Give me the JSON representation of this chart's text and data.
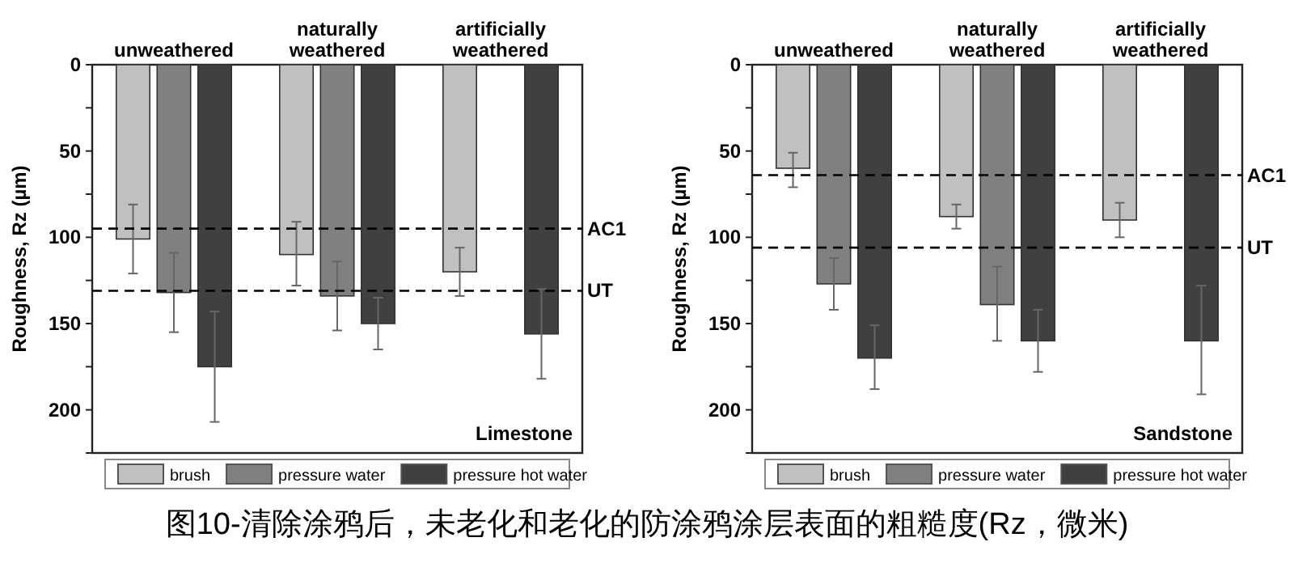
{
  "chart_data": [
    {
      "type": "bar",
      "ylabel": "Roughness, Rz (µm)",
      "categories": [
        "unweathered",
        "naturally weathered",
        "artificially weathered"
      ],
      "series": [
        {
          "name": "brush",
          "color": "#c0c0c0",
          "values": [
            101,
            110,
            120
          ],
          "errors": [
            [
              81,
              121
            ],
            [
              91,
              128
            ],
            [
              106,
              134
            ]
          ]
        },
        {
          "name": "pressure water",
          "color": "#808080",
          "values": [
            132,
            134,
            null
          ],
          "errors": [
            [
              109,
              155
            ],
            [
              114,
              154
            ],
            null
          ]
        },
        {
          "name": "pressure hot water",
          "color": "#404040",
          "values": [
            175,
            150,
            156
          ],
          "errors": [
            [
              143,
              207
            ],
            [
              135,
              165
            ],
            [
              130,
              182
            ]
          ]
        }
      ],
      "ylim": [
        225,
        0
      ],
      "yticks": [
        0,
        {
          "value": 25,
          "label": null
        },
        50,
        {
          "value": 75,
          "label": null
        },
        100,
        {
          "value": 125,
          "label": null
        },
        150,
        {
          "value": 175,
          "label": null
        },
        200,
        {
          "value": 225,
          "label": null
        }
      ],
      "ref_lines": [
        {
          "axis": "y",
          "value": 95,
          "label": "AC1",
          "line_style": "dashed"
        },
        {
          "axis": "y",
          "value": 131,
          "label": "UT",
          "line_style": "dashed"
        }
      ],
      "legend": "bottom",
      "grid": false,
      "annotations": [
        "Limestone",
        "图10-清除涂鸦后，未老化和老化的防涂鸦涂层表面的粗糙度(Rz，微米)"
      ]
    },
    {
      "type": "bar",
      "ylabel": "Roughness, Rz (µm)",
      "categories": [
        "unweathered",
        "naturally weathered",
        "artificially weathered"
      ],
      "series": [
        {
          "name": "brush",
          "color": "#c0c0c0",
          "values": [
            60,
            88,
            90
          ],
          "errors": [
            [
              51,
              71
            ],
            [
              81,
              95
            ],
            [
              80,
              100
            ]
          ]
        },
        {
          "name": "pressure water",
          "color": "#808080",
          "values": [
            127,
            139,
            null
          ],
          "errors": [
            [
              112,
              142
            ],
            [
              117,
              160
            ],
            null
          ]
        },
        {
          "name": "pressure hot water",
          "color": "#404040",
          "values": [
            170,
            160,
            160
          ],
          "errors": [
            [
              151,
              188
            ],
            [
              142,
              178
            ],
            [
              128,
              191
            ]
          ]
        }
      ],
      "ylim": [
        225,
        0
      ],
      "yticks": [
        0,
        {
          "value": 25,
          "label": null
        },
        50,
        {
          "value": 75,
          "label": null
        },
        100,
        {
          "value": 125,
          "label": null
        },
        150,
        {
          "value": 175,
          "label": null
        },
        200,
        {
          "value": 225,
          "label": null
        }
      ],
      "ref_lines": [
        {
          "axis": "y",
          "value": 64,
          "label": "AC1",
          "line_style": "dashed"
        },
        {
          "axis": "y",
          "value": 106,
          "label": "UT",
          "line_style": "dashed"
        }
      ],
      "legend": "bottom",
      "grid": false,
      "annotations": [
        "Sandstone"
      ]
    }
  ]
}
